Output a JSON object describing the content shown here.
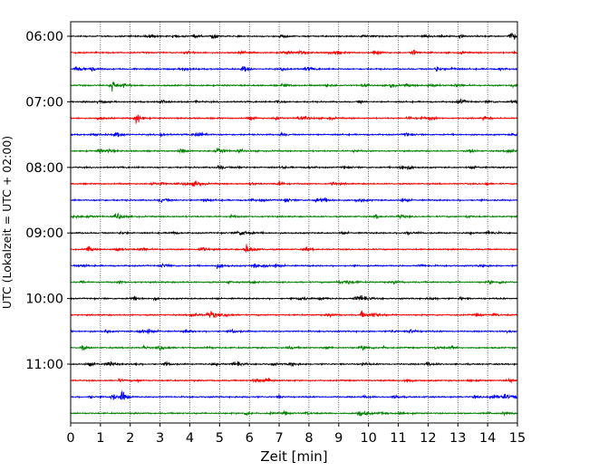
{
  "chart_data": {
    "type": "line",
    "chart_kind": "helicorder seismogram",
    "xlabel": "Zeit  [min]",
    "ylabel": "UTC (Lokalzeit = UTC + 02:00)",
    "xlim": [
      0,
      15
    ],
    "x_ticks": [
      "0",
      "1",
      "2",
      "3",
      "4",
      "5",
      "6",
      "7",
      "8",
      "9",
      "10",
      "11",
      "12",
      "13",
      "14",
      "15"
    ],
    "y_ticks": [
      "06:00",
      "07:00",
      "08:00",
      "09:00",
      "10:00",
      "11:00"
    ],
    "trace_interval_minutes": 15,
    "trace_count": 24,
    "trace_start_times": [
      "06:00",
      "06:15",
      "06:30",
      "06:45",
      "07:00",
      "07:15",
      "07:30",
      "07:45",
      "08:00",
      "08:15",
      "08:30",
      "08:45",
      "09:00",
      "09:15",
      "09:30",
      "09:45",
      "10:00",
      "10:15",
      "10:30",
      "10:45",
      "11:00",
      "11:15",
      "11:30",
      "11:45"
    ],
    "trace_colors": [
      "#000000",
      "#ff0000",
      "#0000ff",
      "#008000"
    ],
    "grid": "vertical dotted lines at each minute",
    "notable_events": [
      {
        "trace": "06:00",
        "minute": 4.8,
        "amplitude": "medium"
      },
      {
        "trace": "06:00",
        "minute": 14.8,
        "amplitude": "medium"
      },
      {
        "trace": "06:15",
        "minute": 11.5,
        "amplitude": "medium"
      },
      {
        "trace": "06:30",
        "minute": 5.8,
        "amplitude": "medium"
      },
      {
        "trace": "06:30",
        "minute": 12.3,
        "amplitude": "medium"
      },
      {
        "trace": "06:45",
        "minute": 1.4,
        "amplitude": "large"
      },
      {
        "trace": "07:15",
        "minute": 2.2,
        "amplitude": "large"
      },
      {
        "trace": "07:15",
        "minute": 6.9,
        "amplitude": "small"
      },
      {
        "trace": "07:45",
        "minute": 3.7,
        "amplitude": "small"
      },
      {
        "trace": "09:15",
        "minute": 5.9,
        "amplitude": "medium"
      },
      {
        "trace": "10:15",
        "minute": 9.8,
        "amplitude": "medium"
      },
      {
        "trace": "10:45",
        "minute": 0.4,
        "amplitude": "small"
      },
      {
        "trace": "11:00",
        "minute": 1.3,
        "amplitude": "medium"
      },
      {
        "trace": "11:00",
        "minute": 4.8,
        "amplitude": "small"
      },
      {
        "trace": "11:15",
        "minute": 13.4,
        "amplitude": "small"
      },
      {
        "trace": "11:30",
        "minute": 1.4,
        "amplitude": "medium"
      },
      {
        "trace": "11:30",
        "minute": 1.75,
        "amplitude": "large"
      },
      {
        "trace": "11:45",
        "minute": 5.9,
        "amplitude": "small"
      }
    ]
  }
}
